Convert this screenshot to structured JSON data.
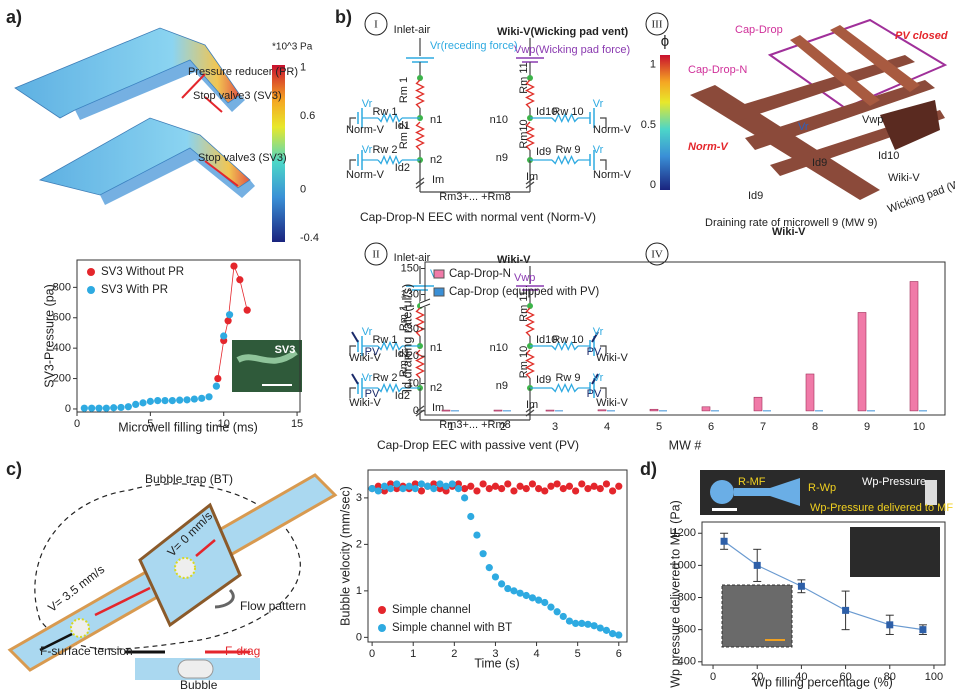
{
  "panel_labels": [
    "a)",
    "b)",
    "c)",
    "d)"
  ],
  "a": {
    "colorbar": {
      "unit": "*10^3 Pa",
      "range": [
        -0.43,
        1.02
      ],
      "ticks": [
        1,
        0.6,
        0,
        -0.4
      ]
    },
    "labels": [
      "Pressure reducer (PR)",
      "Stop valve3 (SV3)",
      "Stop valve3 (SV3)"
    ],
    "inset_label": "SV3"
  },
  "b": {
    "numerals": [
      "I",
      "II",
      "III",
      "IV"
    ],
    "circuit1": {
      "labels": [
        "Inlet-air",
        "Vr(receding force)",
        "Rm 1",
        "Rm 2",
        "Vr",
        "Rw 1",
        "Id1",
        "n1",
        "Norm-V",
        "Vr",
        "Rw 2",
        "Id2",
        "n2",
        "Norm-V",
        "Im",
        "Wiki-V(Wicking pad vent)",
        "Vwp(Wicking pad force)",
        "Rm 11",
        "Id10",
        "Rw 10",
        "Vr",
        "n10",
        "Norm-V",
        "Rm10",
        "n9",
        "Id9",
        "Rw 9",
        "Vr",
        "Norm-V",
        "Im",
        "Rm3+... +Rm8"
      ],
      "caption": "Cap-Drop-N EEC with normal vent (Norm-V)"
    },
    "circuit2": {
      "labels": [
        "Inlet-air",
        "Vr",
        "Rm 1",
        "Rm 2",
        "Vr",
        "Rw 1",
        "Id1",
        "n1",
        "Wiki-V",
        "Vr",
        "Rw 2",
        "Id2",
        "n2",
        "Wiki-V",
        "Im",
        "Wiki-V",
        "Vwp",
        "Rm 11",
        "Id10",
        "Rw 10",
        "Vr",
        "n10",
        "Wiki-V",
        "Rm 10",
        "n9",
        "Id9",
        "Rw 9",
        "Vr",
        "Wiki-V",
        "Im",
        "Rm3+... +Rm8",
        "PV",
        "PV",
        "PV",
        "PV"
      ],
      "caption": "Cap-Drop EEC with passive vent (PV)"
    },
    "render": {
      "colorbar": {
        "symbol": "ϕ",
        "range": [
          -0.04,
          1.08
        ],
        "ticks": [
          1,
          0.5,
          0
        ]
      },
      "labels": [
        "Cap-Drop",
        "PV closed",
        "Cap-Drop-N",
        "Norm-V",
        "Vr",
        "Vwp",
        "Id9",
        "Id10",
        "Id9",
        "Wiki-V",
        "Wiki-V",
        "Wicking pad (Wp)",
        "Draining rate of microwell 9 (MW 9)"
      ]
    }
  },
  "c": {
    "labels": [
      "Bubble trap (BT)",
      "V= 0 mm/s",
      "V= 3.5 mm/s",
      "Flow pattern",
      "F-surface tension",
      "F-drag",
      "Bubble"
    ]
  },
  "d": {
    "labels": [
      "R-MF",
      "R-Wp",
      "Wp-Pressure",
      "Wp-Pressure delivered to MF"
    ]
  },
  "chart_data": [
    {
      "type": "scatter",
      "x_label": "Microwell filling time (ms)",
      "y_label": "SV3-Pressure (pa)",
      "xlim": [
        0,
        15.2
      ],
      "ylim": [
        -20,
        980
      ],
      "xticks": [
        0,
        5,
        10,
        15
      ],
      "yticks": [
        0,
        200,
        400,
        600,
        800
      ],
      "legend": "upper left",
      "series": [
        {
          "name": "SV3 Without PR",
          "color": "#e4262c",
          "line": true,
          "x": [
            9.6,
            10.0,
            10.3,
            10.7,
            11.1,
            11.6
          ],
          "values": [
            200,
            450,
            580,
            940,
            850,
            650
          ]
        },
        {
          "name": "SV3 With PR",
          "color": "#2eaae1",
          "x": [
            0.5,
            1,
            1.5,
            2,
            2.5,
            3,
            3.5,
            4,
            4.5,
            5,
            5.5,
            6,
            6.5,
            7,
            7.5,
            8,
            8.5,
            9,
            9.5,
            10,
            10.4
          ],
          "values": [
            5,
            5,
            5,
            5,
            8,
            10,
            15,
            30,
            40,
            50,
            55,
            55,
            55,
            58,
            60,
            65,
            70,
            80,
            150,
            480,
            620
          ]
        }
      ]
    },
    {
      "type": "bar",
      "x_label": "MW #",
      "y_label": "Id,draning rate(μl/s)",
      "categories": [
        "1",
        "2",
        "3",
        "4",
        "5",
        "6",
        "7",
        "8",
        "9",
        "10"
      ],
      "ylim": [
        -1.5,
        155
      ],
      "ybreak": [
        38,
        125
      ],
      "yticks": [
        0,
        10,
        20,
        30,
        130,
        150
      ],
      "legend": "upper left",
      "series": [
        {
          "name": "Cap-Drop-N",
          "color": "#f07aa8",
          "values": [
            0.3,
            0.3,
            0.3,
            0.4,
            0.6,
            1.5,
            5,
            13.5,
            36,
            140
          ]
        },
        {
          "name": "Cap-Drop (equipped with PV)",
          "color": "#3a8fd6",
          "values": [
            0.2,
            0.2,
            0.2,
            0.2,
            0.2,
            0.2,
            0.2,
            0.2,
            0.2,
            0.2
          ]
        }
      ]
    },
    {
      "type": "scatter",
      "x_label": "Time (s)",
      "y_label": "Bubble velocity (mm/sec)",
      "xlim": [
        -0.1,
        6.2
      ],
      "ylim": [
        -0.1,
        3.6
      ],
      "xticks": [
        0,
        1,
        2,
        3,
        4,
        5,
        6
      ],
      "yticks": [
        0,
        1,
        2,
        3
      ],
      "legend": "lower left",
      "x": [
        0,
        0.15,
        0.3,
        0.45,
        0.6,
        0.75,
        0.9,
        1.05,
        1.2,
        1.35,
        1.5,
        1.65,
        1.8,
        1.95,
        2.1,
        2.25,
        2.4,
        2.55,
        2.7,
        2.85,
        3.0,
        3.15,
        3.3,
        3.45,
        3.6,
        3.75,
        3.9,
        4.05,
        4.2,
        4.35,
        4.5,
        4.65,
        4.8,
        4.95,
        5.1,
        5.25,
        5.4,
        5.55,
        5.7,
        5.85,
        6.0
      ],
      "series": [
        {
          "name": "Simple channel",
          "color": "#e4262c",
          "values": [
            3.2,
            3.25,
            3.15,
            3.3,
            3.2,
            3.25,
            3.2,
            3.3,
            3.15,
            3.25,
            3.3,
            3.2,
            3.15,
            3.25,
            3.3,
            3.2,
            3.25,
            3.15,
            3.3,
            3.2,
            3.25,
            3.2,
            3.3,
            3.15,
            3.25,
            3.2,
            3.3,
            3.2,
            3.15,
            3.25,
            3.3,
            3.2,
            3.25,
            3.15,
            3.3,
            3.2,
            3.25,
            3.2,
            3.3,
            3.15,
            3.25
          ]
        },
        {
          "name": "Simple channel with BT",
          "color": "#2eaae1",
          "values": [
            3.2,
            3.15,
            3.25,
            3.2,
            3.3,
            3.2,
            3.25,
            3.2,
            3.3,
            3.25,
            3.2,
            3.3,
            3.25,
            3.3,
            3.2,
            3.0,
            2.6,
            2.2,
            1.8,
            1.5,
            1.3,
            1.15,
            1.05,
            1.0,
            0.95,
            0.9,
            0.85,
            0.8,
            0.75,
            0.65,
            0.55,
            0.45,
            0.35,
            0.3,
            0.3,
            0.28,
            0.25,
            0.2,
            0.15,
            0.08,
            0.05
          ]
        }
      ]
    },
    {
      "type": "errorbar",
      "x_label": "Wp filling percentage (%)",
      "y_label": "Wp pressure delivered to MF (Pa)",
      "xlim": [
        -5,
        105
      ],
      "ylim": [
        380,
        1270
      ],
      "xticks": [
        0,
        20,
        40,
        60,
        80,
        100
      ],
      "yticks": [
        400,
        600,
        800,
        1000,
        1200
      ],
      "color": "#2d5fa8",
      "x": [
        5,
        20,
        40,
        60,
        80,
        95
      ],
      "values": [
        1150,
        1000,
        870,
        720,
        630,
        600
      ],
      "errors": [
        50,
        100,
        40,
        120,
        60,
        30
      ]
    }
  ]
}
